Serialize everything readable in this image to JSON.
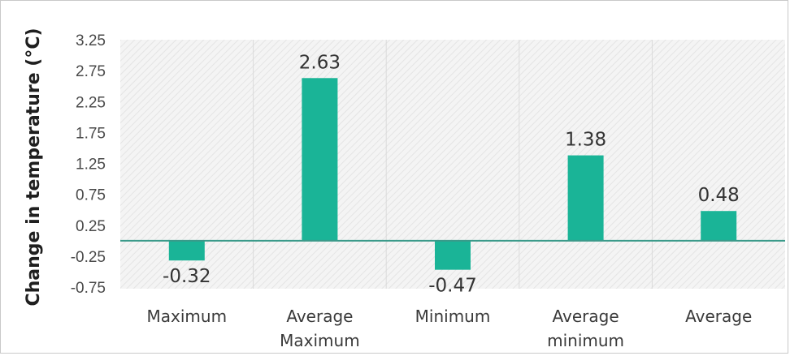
{
  "chart_data": {
    "type": "bar",
    "title": "",
    "xlabel": "",
    "ylabel": "Change in temperature (°C)",
    "categories": [
      [
        "Maximum"
      ],
      [
        "Average",
        "Maximum"
      ],
      [
        "Minimum"
      ],
      [
        "Average",
        "minimum"
      ],
      [
        "Average"
      ]
    ],
    "values": [
      -0.32,
      2.63,
      -0.47,
      1.38,
      0.48
    ],
    "data_labels": [
      "-0.32",
      "2.63",
      "-0.47",
      "1.38",
      "0.48"
    ],
    "yticks": [
      "3.25",
      "2.75",
      "2.25",
      "1.75",
      "1.25",
      "0.75",
      "0.25",
      "-0.25",
      "-0.75"
    ],
    "ylim": [
      -0.75,
      3.25
    ],
    "grid": true,
    "legend": "none",
    "colors": {
      "bar": "#1ab497",
      "zero_line": "#3a9a8a",
      "plot_background": "#f2f2f2",
      "grid": "#dadada"
    }
  }
}
